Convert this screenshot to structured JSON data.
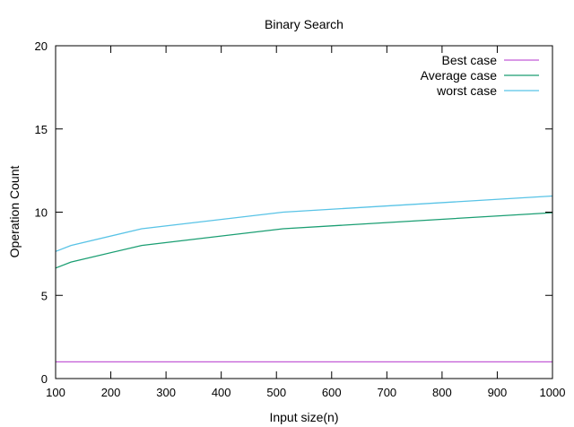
{
  "chart_data": {
    "type": "line",
    "title": "Binary Search",
    "xlabel": "Input size(n)",
    "ylabel": "Operation Count",
    "xlim": [
      100,
      1000
    ],
    "ylim": [
      0,
      20
    ],
    "x_ticks": [
      100,
      200,
      300,
      400,
      500,
      600,
      700,
      800,
      900,
      1000
    ],
    "y_ticks": [
      0,
      5,
      10,
      15,
      20
    ],
    "grid": false,
    "legend_position": "top-right",
    "series": [
      {
        "name": "Best case",
        "color": "#c25bd6",
        "points": [
          [
            100,
            1
          ],
          [
            128,
            1
          ],
          [
            256,
            1
          ],
          [
            512,
            1
          ],
          [
            1000,
            1
          ]
        ]
      },
      {
        "name": "Average case",
        "color": "#1a9e72",
        "points": [
          [
            100,
            6.64
          ],
          [
            128,
            7
          ],
          [
            256,
            8
          ],
          [
            512,
            9
          ],
          [
            1000,
            9.97
          ]
        ]
      },
      {
        "name": "worst case",
        "color": "#58c3e6",
        "points": [
          [
            100,
            7.64
          ],
          [
            128,
            8
          ],
          [
            256,
            9
          ],
          [
            512,
            10
          ],
          [
            1000,
            10.97
          ]
        ]
      }
    ]
  }
}
